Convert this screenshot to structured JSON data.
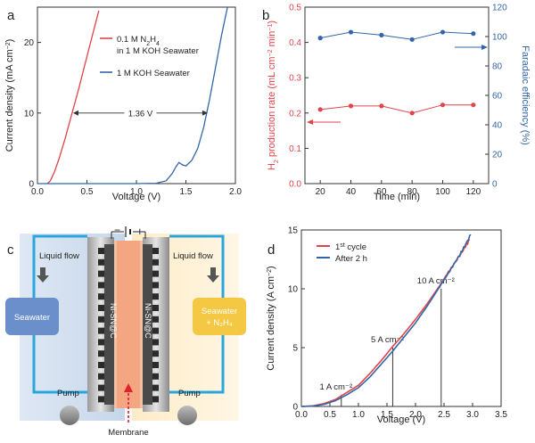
{
  "chart_data": [
    {
      "panel": "a",
      "type": "line",
      "xlabel": "Voltage (V)",
      "ylabel": "Current density (mA cm⁻²)",
      "xlim": [
        0.0,
        2.0
      ],
      "ylim": [
        0,
        25
      ],
      "xticks": [
        "0.0",
        "0.5",
        "1.0",
        "1.5",
        "2.0"
      ],
      "yticks": [
        "0",
        "10",
        "20"
      ],
      "series": [
        {
          "name": "0.1 M N₂H₄ in 1 M KOH Seawater",
          "color": "#e0454a",
          "x": [
            0.1,
            0.13,
            0.17,
            0.22,
            0.28,
            0.35,
            0.42,
            0.5,
            0.57,
            0.62
          ],
          "y": [
            0.0,
            0.4,
            1.6,
            3.6,
            6.4,
            10.0,
            13.6,
            18.0,
            21.8,
            24.5
          ]
        },
        {
          "name": "1 M KOH Seawater",
          "color": "#3266a8",
          "x": [
            0.0,
            0.5,
            1.0,
            1.2,
            1.3,
            1.36,
            1.4,
            1.43,
            1.46,
            1.5,
            1.56,
            1.62,
            1.68,
            1.74,
            1.8,
            1.86,
            1.92
          ],
          "y": [
            0.0,
            0.0,
            0.0,
            0.05,
            0.4,
            1.4,
            2.4,
            3.0,
            2.7,
            2.5,
            3.3,
            5.0,
            8.0,
            12.0,
            16.5,
            21.0,
            25.0
          ]
        }
      ],
      "annotation": {
        "text": "1.36 V",
        "x_from": 0.36,
        "x_to": 1.72,
        "y": 10
      }
    },
    {
      "panel": "b",
      "type": "scatter",
      "xlabel": "Time (min)",
      "ylabel_left": "H₂ production rate (mL cm⁻² min⁻¹)",
      "ylabel_right": "Faradaic efficiency (%)",
      "xlim": [
        10,
        130
      ],
      "ylim_left": [
        0.0,
        0.5
      ],
      "ylim_right": [
        0,
        120
      ],
      "xticks": [
        "20",
        "40",
        "60",
        "80",
        "100",
        "120"
      ],
      "yticks_left": [
        "0.0",
        "0.1",
        "0.2",
        "0.3",
        "0.4",
        "0.5"
      ],
      "yticks_right": [
        "0",
        "20",
        "40",
        "60",
        "80",
        "100",
        "120"
      ],
      "series": [
        {
          "axis": "left",
          "color": "#e0454a",
          "x": [
            20,
            40,
            60,
            80,
            100,
            120
          ],
          "y": [
            0.21,
            0.22,
            0.22,
            0.2,
            0.223,
            0.223
          ]
        },
        {
          "axis": "right",
          "color": "#3266a8",
          "x": [
            20,
            40,
            60,
            80,
            100,
            120
          ],
          "y": [
            99,
            103,
            101,
            98,
            103,
            102
          ]
        }
      ]
    },
    {
      "panel": "d",
      "type": "line",
      "xlabel": "Voltage (V)",
      "ylabel": "Current density (A cm⁻²)",
      "xlim": [
        0.0,
        3.5
      ],
      "ylim": [
        0,
        15
      ],
      "xticks": [
        "0.0",
        "0.5",
        "1.0",
        "1.5",
        "2.0",
        "2.5",
        "3.0",
        "3.5"
      ],
      "yticks": [
        "0",
        "5",
        "10",
        "15"
      ],
      "series": [
        {
          "name": "1st cycle",
          "color": "#e0454a",
          "x": [
            0.0,
            0.2,
            0.4,
            0.6,
            0.8,
            1.0,
            1.2,
            1.4,
            1.6,
            1.8,
            2.0,
            2.2,
            2.4,
            2.6,
            2.8,
            2.95
          ],
          "y": [
            0.0,
            0.05,
            0.25,
            0.6,
            1.2,
            1.8,
            2.8,
            3.9,
            5.1,
            6.2,
            7.4,
            8.7,
            10.1,
            11.6,
            13.0,
            14.2
          ]
        },
        {
          "name": "After 2 h",
          "color": "#3266a8",
          "x": [
            0.0,
            0.2,
            0.4,
            0.6,
            0.8,
            1.0,
            1.2,
            1.4,
            1.6,
            1.8,
            2.0,
            2.2,
            2.4,
            2.6,
            2.8,
            2.97
          ],
          "y": [
            0.0,
            0.03,
            0.18,
            0.5,
            1.0,
            1.6,
            2.5,
            3.6,
            4.7,
            5.9,
            7.1,
            8.5,
            10.0,
            11.5,
            13.1,
            14.6
          ]
        }
      ],
      "annotations": [
        {
          "text": "1 A cm⁻²",
          "x": 0.7,
          "y": 1
        },
        {
          "text": "5 A cm⁻²",
          "x": 1.6,
          "y": 5
        },
        {
          "text": "10 A cm⁻²",
          "x": 2.45,
          "y": 10
        }
      ]
    }
  ],
  "panel_labels": [
    "a",
    "b",
    "c",
    "d"
  ],
  "diagram_c": {
    "liquid_flow_left": "Liquid flow",
    "liquid_flow_right": "Liquid flow",
    "seawater": "Seawater",
    "seawater_n2h4_line1": "Seawater",
    "seawater_n2h4_line2": "+ N₂H₄",
    "electrode_left": "Ni-SN@C",
    "electrode_right": "Ni-SN@C",
    "pump_left": "Pump",
    "pump_right": "Pump",
    "membrane": "Membrane",
    "minus": "−",
    "plus": "+"
  }
}
